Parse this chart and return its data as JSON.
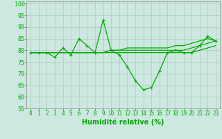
{
  "xlabel": "Humidité relative (%)",
  "bg_color": "#cce8e0",
  "grid_color": "#b0c8c0",
  "line_color": "#00aa00",
  "xlim": [
    -0.5,
    23.5
  ],
  "ylim": [
    55,
    101
  ],
  "yticks": [
    55,
    60,
    65,
    70,
    75,
    80,
    85,
    90,
    95,
    100
  ],
  "xticks": [
    0,
    1,
    2,
    3,
    4,
    5,
    6,
    7,
    8,
    9,
    10,
    11,
    12,
    13,
    14,
    15,
    16,
    17,
    18,
    19,
    20,
    21,
    22,
    23
  ],
  "main_line": [
    79,
    79,
    79,
    77,
    81,
    78,
    85,
    82,
    79,
    93,
    80,
    78,
    73,
    67,
    63,
    64,
    71,
    79,
    80,
    79,
    79,
    82,
    86,
    84
  ],
  "flat_lines": [
    [
      79,
      79,
      79,
      79,
      79,
      79,
      79,
      79,
      79,
      79,
      79,
      79,
      79,
      79,
      79,
      79,
      79,
      79,
      79,
      79,
      79,
      80,
      81,
      82
    ],
    [
      79,
      79,
      79,
      79,
      79,
      79,
      79,
      79,
      79,
      79,
      80,
      80,
      80,
      80,
      80,
      80,
      80,
      80,
      80,
      80,
      81,
      82,
      83,
      84
    ],
    [
      79,
      79,
      79,
      79,
      79,
      79,
      79,
      79,
      79,
      79,
      80,
      80,
      81,
      81,
      81,
      81,
      81,
      81,
      82,
      82,
      83,
      84,
      85,
      84
    ]
  ],
  "xlabel_fontsize": 7,
  "tick_fontsize": 5.5,
  "ytick_fontsize": 6
}
